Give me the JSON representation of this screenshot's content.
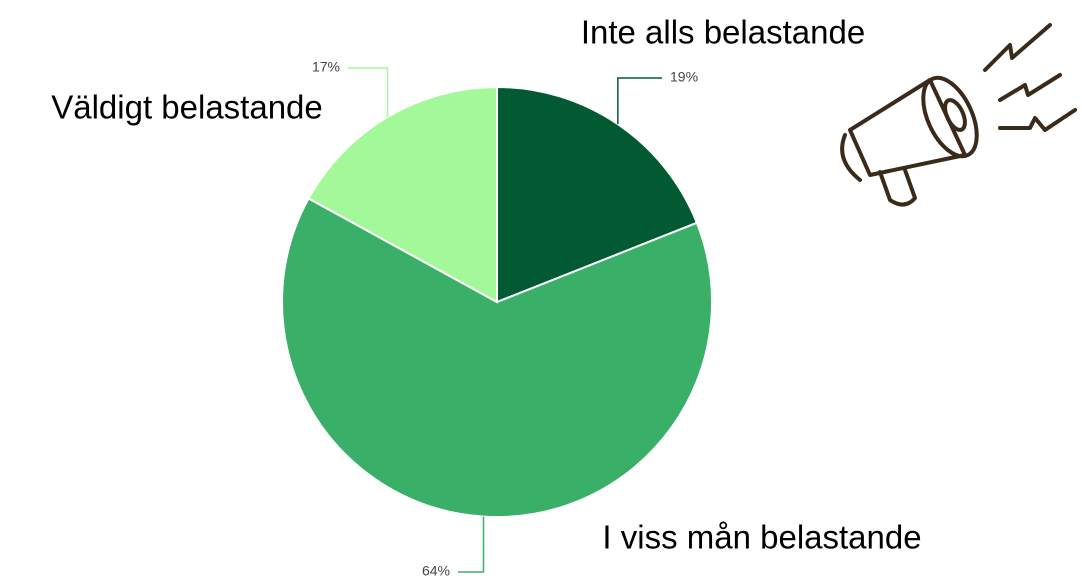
{
  "chart_data": {
    "type": "pie",
    "categories": [
      "Inte alls belastande",
      "I viss mån belastande",
      "Väldigt belastande"
    ],
    "values": [
      19,
      64,
      17
    ],
    "value_labels": [
      "19%",
      "64%",
      "17%"
    ],
    "colors": [
      "#025a32",
      "#3aaf68",
      "#a3f99a"
    ]
  }
}
